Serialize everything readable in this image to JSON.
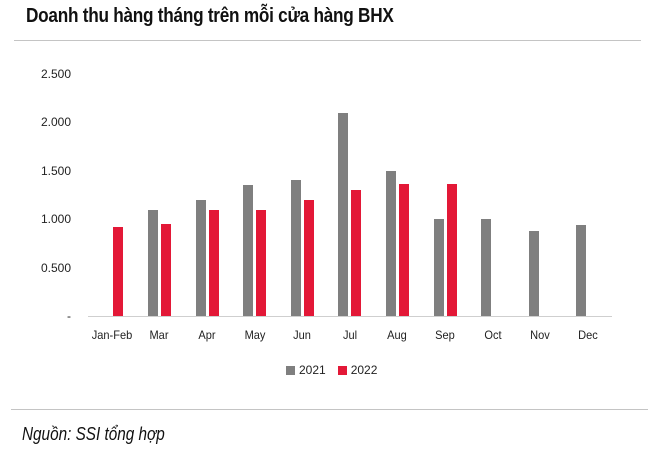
{
  "title": "Doanh thu hàng tháng trên mỗi cửa hàng BHX",
  "source": "Nguồn: SSI tổng hợp",
  "colors": {
    "2021": "#7f7f7f",
    "2022": "#e31837",
    "rule": "#c4c4c4"
  },
  "y_ticks": [
    "2.500",
    "2.000",
    "1.500",
    "1.000",
    "0.500",
    "-"
  ],
  "legend": [
    {
      "label": "2021",
      "color": "#7f7f7f"
    },
    {
      "label": "2022",
      "color": "#e31837"
    }
  ],
  "chart_data": {
    "type": "bar",
    "title": "Doanh thu hàng tháng trên mỗi cửa hàng BHX",
    "xlabel": "",
    "ylabel": "",
    "categories": [
      "Jan-Feb",
      "Mar",
      "Apr",
      "May",
      "Jun",
      "Jul",
      "Aug",
      "Sep",
      "Oct",
      "Nov",
      "Dec"
    ],
    "series": [
      {
        "name": "2021",
        "color": "#7f7f7f",
        "values": [
          null,
          1.1,
          1.2,
          1.35,
          1.4,
          2.1,
          1.5,
          1.0,
          1.0,
          0.88,
          0.94
        ]
      },
      {
        "name": "2022",
        "color": "#e31837",
        "values": [
          0.92,
          0.95,
          1.1,
          1.1,
          1.2,
          1.3,
          1.36,
          1.36,
          null,
          null,
          null
        ]
      }
    ],
    "y_tick_labels": [
      "-",
      "0.500",
      "1.000",
      "1.500",
      "2.000",
      "2.500"
    ],
    "ylim": [
      0,
      2.5
    ],
    "grid": false,
    "legend_position": "bottom",
    "source": "Nguồn: SSI tổng hợp"
  }
}
